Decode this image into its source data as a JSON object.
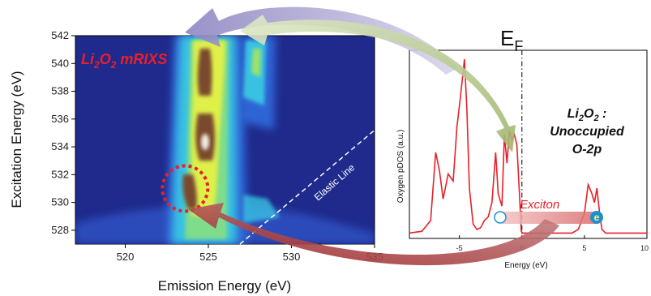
{
  "chart_data": [
    {
      "type": "heatmap",
      "title": "Li2O2 mRIXS",
      "title_parts": {
        "pre": "Li",
        "sub1": "2",
        "mid": "O",
        "sub2": "2",
        "post": " mRIXS"
      },
      "title_color": "#e8202a",
      "xlabel": "Emission Energy (eV)",
      "ylabel": "Excitation Energy (eV)",
      "xlim": [
        517,
        535
      ],
      "ylim": [
        527,
        542
      ],
      "xticks": [
        520,
        525,
        530,
        535
      ],
      "yticks": [
        528,
        530,
        532,
        534,
        536,
        538,
        540,
        542
      ],
      "annotations": [
        {
          "text": "Elastic Line",
          "color": "#ffffff"
        }
      ],
      "elastic_line": {
        "from": [
          526.9,
          527
        ],
        "to": [
          535,
          535.2
        ]
      },
      "highlight_circle": {
        "center": [
          523.6,
          531.0
        ],
        "color": "#e8202a"
      },
      "colors": {
        "background": "#1f2a8c",
        "low": "#2f5fd0",
        "mid": "#38c4e4",
        "high": "#dff04a",
        "peak": "#7a4a2e"
      }
    },
    {
      "type": "line",
      "title": "EF",
      "title_parts": {
        "main": "E",
        "sub": "F"
      },
      "xlabel": "Energy (eV)",
      "ylabel": "Oxygen pDOS (a.u.)",
      "xlim": [
        -9,
        10
      ],
      "ylim": [
        0,
        1.05
      ],
      "xticks": [
        -5,
        0,
        5,
        10
      ],
      "fermi_level": 0,
      "series": [
        {
          "color": "#e8202a",
          "x": [
            -9,
            -8,
            -7.3,
            -6.9,
            -6.6,
            -6.3,
            -5.9,
            -5.5,
            -5.2,
            -4.9,
            -4.6,
            -4.4,
            -4.2,
            -3.9,
            -3.6,
            -3.3,
            -3.0,
            -2.7,
            -2.4,
            -2.1,
            -1.9,
            -1.6,
            -1.4,
            -1.2,
            -1.0,
            -0.8,
            -0.6,
            -0.4,
            -0.2,
            -0.05,
            0.05,
            0.5,
            1,
            2,
            3,
            4,
            4.5,
            5.0,
            5.3,
            5.6,
            5.8,
            6.0,
            6.2,
            6.4,
            6.7,
            7.0,
            7.5,
            8,
            9,
            10
          ],
          "y": [
            0.03,
            0.04,
            0.1,
            0.48,
            0.38,
            0.22,
            0.36,
            0.32,
            0.62,
            0.8,
            1.0,
            0.72,
            0.28,
            0.08,
            0.05,
            0.06,
            0.1,
            0.12,
            0.2,
            0.48,
            0.25,
            0.18,
            0.58,
            0.42,
            0.6,
            0.55,
            0.58,
            0.52,
            0.25,
            0.04,
            0.03,
            0.03,
            0.03,
            0.03,
            0.03,
            0.03,
            0.05,
            0.14,
            0.3,
            0.25,
            0.2,
            0.28,
            0.15,
            0.05,
            0.03,
            0.03,
            0.03,
            0.03,
            0.03,
            0.03
          ]
        }
      ],
      "annotations": [
        {
          "text": "Li2O2 :",
          "parts": {
            "pre": "Li",
            "sub1": "2",
            "mid": "O",
            "sub2": "2",
            "post": " :"
          }
        },
        {
          "text": "Unoccupied"
        },
        {
          "text": "O-2p"
        },
        {
          "text": "Exciton",
          "color": "#e8202a"
        },
        {
          "text": "e",
          "color": "#ffff66",
          "circle_color": "#1e8fd0"
        }
      ],
      "colors": {
        "arrow_purple": "#b0abd0",
        "arrow_green": "#b7c98f",
        "arrow_red": "#b23a3a",
        "exciton_band": "#e8a0a0"
      }
    }
  ]
}
